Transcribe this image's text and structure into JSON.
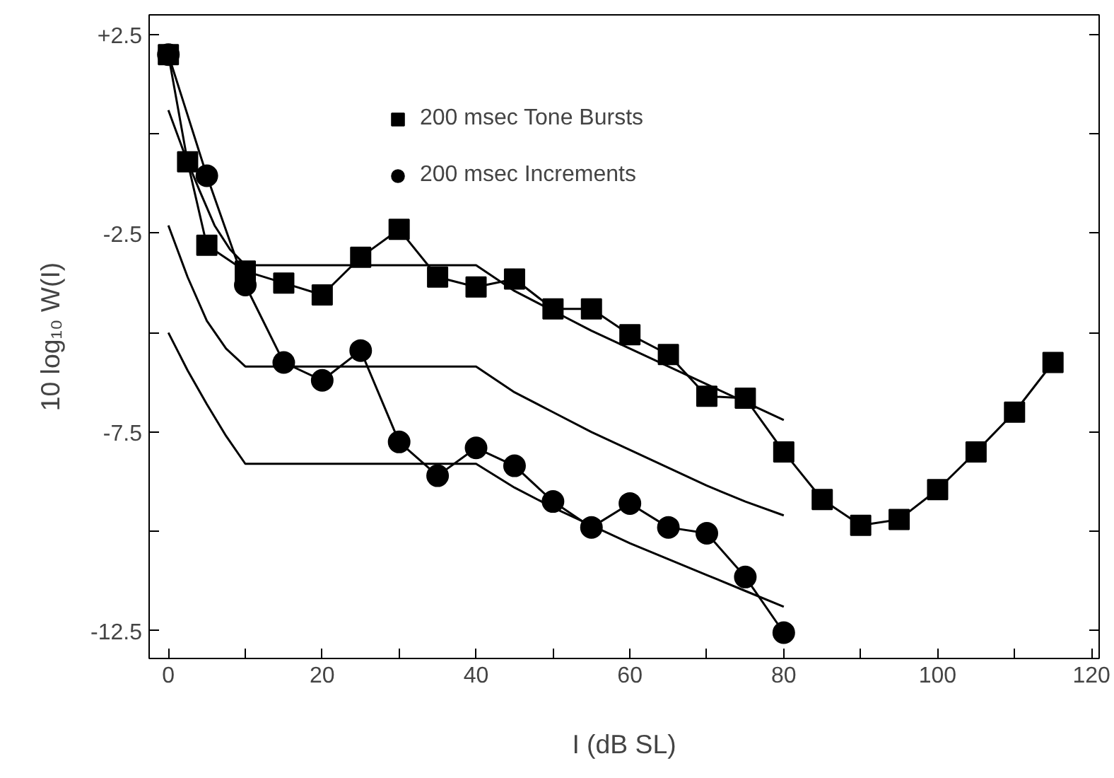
{
  "chart_data": {
    "type": "line",
    "xlabel": "I (dB SL)",
    "ylabel": "10 log₁₀ W(I)",
    "xlim": [
      -2.5,
      121
    ],
    "ylim": [
      -13.2,
      3.0
    ],
    "xticks": [
      0,
      {
        "value": 10,
        "label": null
      },
      20,
      {
        "value": 30,
        "label": null
      },
      40,
      {
        "value": 50,
        "label": null
      },
      60,
      {
        "value": 70,
        "label": null
      },
      80,
      {
        "value": 90,
        "label": null
      },
      100,
      {
        "value": 110,
        "label": null
      },
      120
    ],
    "yticks": [
      {
        "value": 2.5,
        "label": "+2.5"
      },
      {
        "value": 0,
        "label": null
      },
      -2.5,
      {
        "value": -5,
        "label": null
      },
      -7.5,
      {
        "value": -10,
        "label": null
      },
      -12.5
    ],
    "grid": false,
    "legend": "top",
    "series": [
      {
        "name": "200 msec Tone Bursts",
        "color": "#000000",
        "marker": "square",
        "x": [
          0,
          2.5,
          5,
          10,
          15,
          20,
          25,
          30,
          35,
          40,
          45,
          50,
          55,
          60,
          65,
          70,
          75,
          80,
          85,
          90,
          95,
          100,
          105,
          110,
          115
        ],
        "values": [
          2.0,
          -0.7,
          -2.8,
          -3.45,
          -3.75,
          -4.05,
          -3.1,
          -2.4,
          -3.6,
          -3.85,
          -3.65,
          -4.4,
          -4.4,
          -5.05,
          -5.55,
          -6.6,
          -6.65,
          -8.0,
          -9.2,
          -9.85,
          -9.7,
          -8.95,
          -8.0,
          -7.0,
          -5.75
        ]
      },
      {
        "name": "200 msec Increments",
        "color": "#000000",
        "marker": "circle",
        "x": [
          0,
          5,
          10,
          15,
          20,
          25,
          30,
          35,
          40,
          45,
          50,
          55,
          60,
          65,
          70,
          75,
          80
        ],
        "values": [
          2.0,
          -1.05,
          -3.8,
          -5.75,
          -6.2,
          -5.45,
          -7.75,
          -8.6,
          -7.9,
          -8.35,
          -9.25,
          -9.9,
          -9.3,
          -9.9,
          -10.05,
          -11.15,
          -12.55
        ]
      },
      {
        "color": "#000000",
        "marker": "none",
        "x": [
          0,
          2,
          4,
          6,
          8,
          10,
          40,
          45,
          50,
          55,
          60,
          65,
          70,
          75,
          80
        ],
        "values": [
          0.6,
          -0.45,
          -1.4,
          -2.3,
          -2.9,
          -3.3,
          -3.3,
          -3.95,
          -4.45,
          -4.95,
          -5.4,
          -5.85,
          -6.3,
          -6.75,
          -7.2
        ]
      },
      {
        "color": "#000000",
        "marker": "none",
        "x": [
          0,
          2.5,
          5,
          7.5,
          10,
          40,
          45,
          50,
          55,
          60,
          65,
          70,
          75,
          80
        ],
        "values": [
          -2.3,
          -3.6,
          -4.7,
          -5.4,
          -5.85,
          -5.85,
          -6.5,
          -7.0,
          -7.5,
          -7.95,
          -8.4,
          -8.85,
          -9.25,
          -9.6
        ]
      },
      {
        "color": "#000000",
        "marker": "none",
        "x": [
          0,
          2.5,
          5,
          7.5,
          10,
          40,
          45,
          50,
          55,
          60,
          65,
          70,
          75,
          80
        ],
        "values": [
          -5.0,
          -5.95,
          -6.8,
          -7.6,
          -8.3,
          -8.3,
          -8.9,
          -9.4,
          -9.85,
          -10.3,
          -10.7,
          -11.1,
          -11.5,
          -11.9
        ]
      }
    ]
  }
}
